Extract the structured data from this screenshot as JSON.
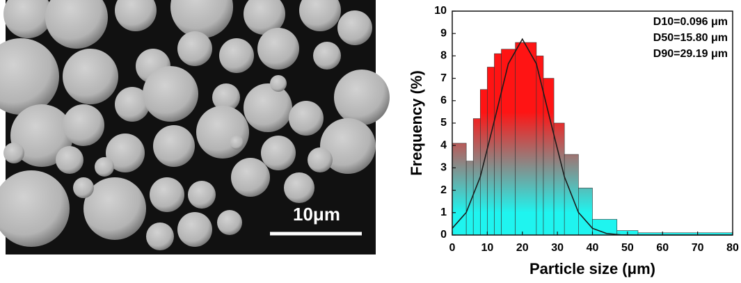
{
  "image": {
    "scale_bar": "10μm"
  },
  "chart_data": {
    "type": "histogram",
    "xlabel": "Particle size (μm)",
    "ylabel": "Frequency (%)",
    "bins": [
      0,
      4,
      6,
      8,
      10,
      12,
      14,
      18,
      24,
      26,
      29,
      32,
      36,
      40,
      47,
      53,
      80
    ],
    "counts": [
      4.1,
      3.3,
      5.2,
      6.5,
      7.5,
      8.1,
      8.3,
      8.6,
      8.0,
      7.0,
      5.0,
      3.6,
      2.1,
      0.7,
      0.2,
      0.1
    ],
    "gradient": [
      "#ff1414",
      "#1ff4ef"
    ],
    "curve": {
      "x": [
        0,
        4,
        8,
        12,
        16,
        20,
        24,
        28,
        32,
        36,
        40,
        44,
        48,
        52,
        60,
        70,
        80
      ],
      "values": [
        0.3,
        1.01,
        2.6,
        5.1,
        7.65,
        8.75,
        7.65,
        5.1,
        2.6,
        1.01,
        0.3,
        0.07,
        0.01,
        0,
        0,
        0,
        0
      ],
      "color": "#1a1a1a"
    },
    "annotations": [
      "D10=0.096 μm",
      "D50=15.80 μm",
      "D90=29.19 μm"
    ],
    "xlim": [
      0,
      80
    ],
    "xticks": [
      0,
      10,
      20,
      30,
      40,
      50,
      60,
      70,
      80
    ],
    "ylim": [
      0,
      10
    ],
    "yticks": [
      0,
      1,
      2,
      3,
      4,
      5,
      6,
      7,
      8,
      9,
      10
    ]
  }
}
